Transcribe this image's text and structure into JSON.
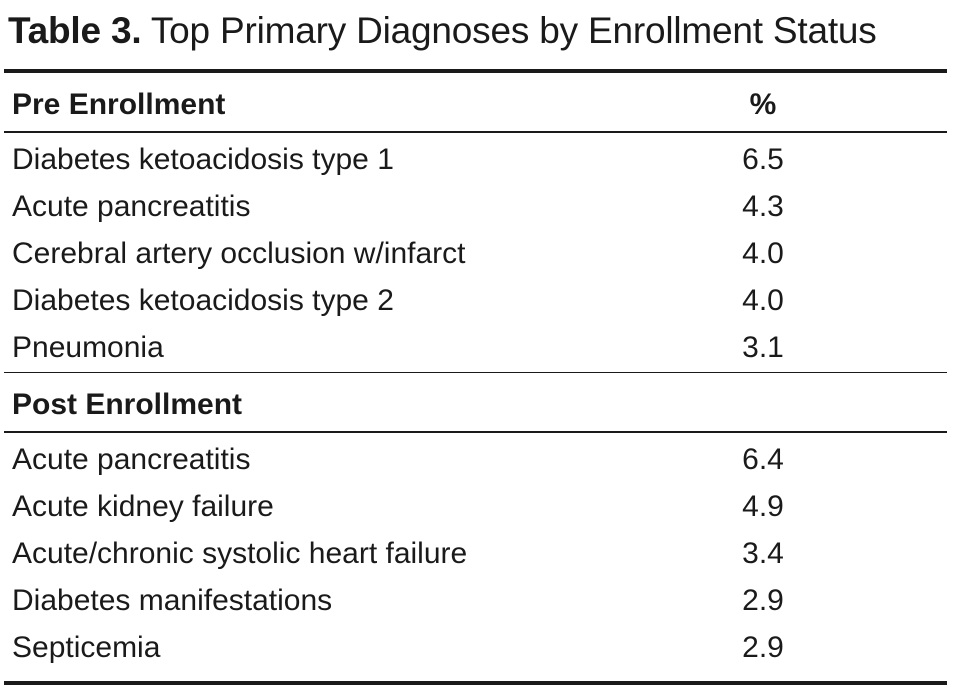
{
  "caption": {
    "label": "Table 3.",
    "text": "Top Primary Diagnoses by Enrollment Status"
  },
  "pre": {
    "heading": "Pre Enrollment",
    "pct_header": "%",
    "rows": [
      {
        "name": "Diabetes ketoacidosis type 1",
        "value": "6.5"
      },
      {
        "name": "Acute pancreatitis",
        "value": "4.3"
      },
      {
        "name": "Cerebral artery occlusion w/infarct",
        "value": "4.0"
      },
      {
        "name": "Diabetes ketoacidosis type 2",
        "value": "4.0"
      },
      {
        "name": "Pneumonia",
        "value": "3.1"
      }
    ]
  },
  "post": {
    "heading": "Post Enrollment",
    "rows": [
      {
        "name": "Acute pancreatitis",
        "value": "6.4"
      },
      {
        "name": "Acute kidney failure",
        "value": "4.9"
      },
      {
        "name": "Acute/chronic systolic heart failure",
        "value": "3.4"
      },
      {
        "name": "Diabetes manifestations",
        "value": "2.9"
      },
      {
        "name": "Septicemia",
        "value": "2.9"
      }
    ]
  }
}
